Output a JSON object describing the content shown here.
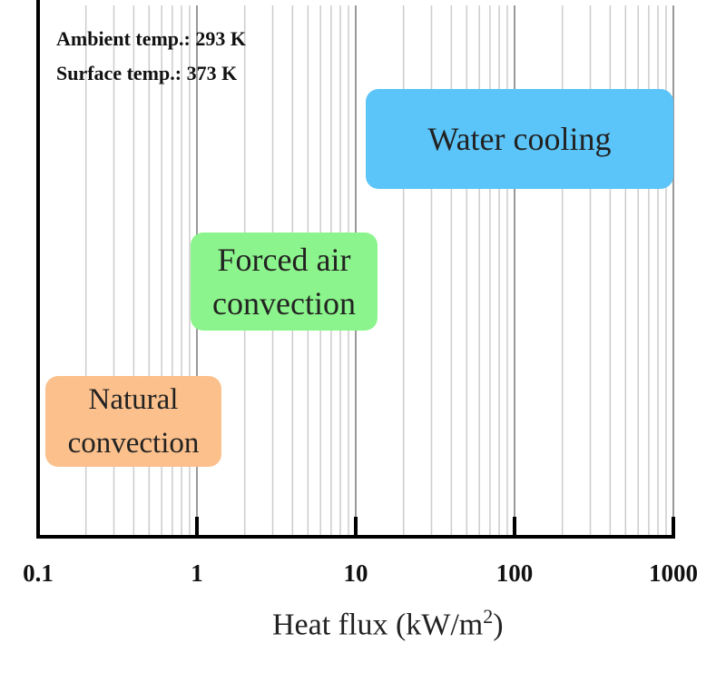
{
  "chart_data": {
    "type": "range",
    "x_scale": "log",
    "xlim": [
      0.1,
      1000
    ],
    "grid": "vertical minor gridlines",
    "xlabel": "Heat flux (kW/m²)",
    "xlabel_parts": {
      "before": "Heat flux (kW/m",
      "sup": "2",
      "after": ")"
    },
    "xticks": [
      "0.1",
      "1",
      "10",
      "100",
      "1000"
    ],
    "annotations": [
      "Ambient temp.: 293 K",
      "Surface temp.: 373 K"
    ],
    "regions": [
      {
        "lines": [
          "Natural",
          "convection"
        ],
        "x_start": 0.1,
        "x_end": 0.95,
        "color": "#fbc08c"
      },
      {
        "lines": [
          "Forced air",
          "convection"
        ],
        "x_start": 1,
        "x_end": 9.4,
        "color": "#8cf48c"
      },
      {
        "lines": [
          "Water cooling"
        ],
        "x_start": 10,
        "x_end": 1000,
        "color": "#5bc4f8"
      }
    ]
  },
  "colors": {
    "axis": "#000000",
    "grid": "#cccccc",
    "background": "#ffffff"
  }
}
